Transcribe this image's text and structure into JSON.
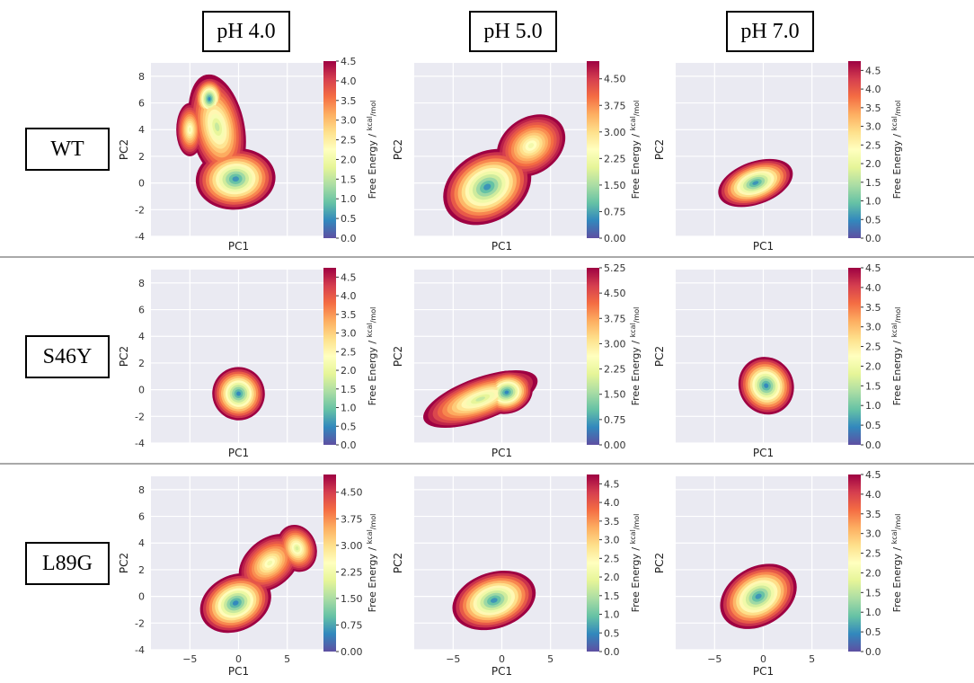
{
  "columns": [
    "pH 4.0",
    "pH 5.0",
    "pH 7.0"
  ],
  "rows": [
    "WT",
    "S46Y",
    "L89G"
  ],
  "colors": {
    "panel_bg": "#eaeaf2",
    "grid": "#ffffff",
    "separator": "#a9a9a9",
    "spectral_low_to_high": [
      "#5e4fa2",
      "#3288bd",
      "#66c2a5",
      "#abdda4",
      "#e6f598",
      "#ffffbf",
      "#fee08b",
      "#fdae61",
      "#f46d43",
      "#d53e4f",
      "#9e0142"
    ]
  },
  "chart_data": [
    {
      "type": "heatmap",
      "id": "wt-ph4",
      "row": "WT",
      "column": "pH 4.0",
      "xlabel": "PC1",
      "ylabel": "PC2",
      "show_x_ticks": false,
      "show_y_ticks": true,
      "xlim": [
        -9,
        9
      ],
      "ylim": [
        -4,
        9
      ],
      "x_ticks": [
        "-5",
        "0",
        "5"
      ],
      "y_ticks": [
        "-4",
        "-2",
        "0",
        "2",
        "4",
        "6",
        "8"
      ],
      "colorbar": {
        "label": "Free Energy / kcal/mol",
        "label_prefix": "Free Energy / ",
        "unit_num": "kcal",
        "unit_den": "mol",
        "min": 0,
        "max": 4.5,
        "ticks": [
          "0.0",
          "0.5",
          "1.0",
          "1.5",
          "2.0",
          "2.5",
          "3.0",
          "3.5",
          "4.0",
          "4.5"
        ]
      },
      "basins": [
        {
          "x": -2.2,
          "y": 4.2,
          "rx": 2.8,
          "ry": 4.0,
          "rot": 12,
          "min": 1.3
        },
        {
          "x": -3.0,
          "y": 6.3,
          "rx": 1.6,
          "ry": 1.6,
          "rot": 0,
          "min": 0.1
        },
        {
          "x": -0.3,
          "y": 0.3,
          "rx": 4.1,
          "ry": 2.3,
          "rot": 5,
          "min": 0.2
        },
        {
          "x": -5.0,
          "y": 4.0,
          "rx": 1.4,
          "ry": 2.0,
          "rot": 0,
          "min": 1.8
        }
      ]
    },
    {
      "type": "heatmap",
      "id": "wt-ph5",
      "row": "WT",
      "column": "pH 5.0",
      "xlabel": "PC1",
      "ylabel": "PC2",
      "show_x_ticks": false,
      "show_y_ticks": false,
      "xlim": [
        -9,
        9
      ],
      "ylim": [
        -4,
        9
      ],
      "x_ticks": [
        "-5",
        "0",
        "5"
      ],
      "y_ticks": [
        "-4",
        "-2",
        "0",
        "2",
        "4",
        "6",
        "8"
      ],
      "colorbar": {
        "label": "Free Energy / kcal/mol",
        "label_prefix": "Free Energy / ",
        "unit_num": "kcal",
        "unit_den": "mol",
        "min": 0,
        "max": 5.0,
        "ticks": [
          "0.00",
          "0.75",
          "1.50",
          "2.25",
          "3.00",
          "3.75",
          "4.50"
        ]
      },
      "basins": [
        {
          "x": -1.5,
          "y": -0.3,
          "rx": 4.8,
          "ry": 2.6,
          "rot": 30,
          "min": 0.2
        },
        {
          "x": 3.0,
          "y": 2.8,
          "rx": 3.8,
          "ry": 2.1,
          "rot": 35,
          "min": 2.0
        }
      ]
    },
    {
      "type": "heatmap",
      "id": "wt-ph7",
      "row": "WT",
      "column": "pH 7.0",
      "xlabel": "PC1",
      "ylabel": "PC2",
      "show_x_ticks": false,
      "show_y_ticks": false,
      "xlim": [
        -9,
        9
      ],
      "ylim": [
        -4,
        9
      ],
      "x_ticks": [
        "-5",
        "0",
        "5"
      ],
      "y_ticks": [
        "-4",
        "-2",
        "0",
        "2",
        "4",
        "6",
        "8"
      ],
      "colorbar": {
        "label": "Free Energy / kcal/mol",
        "label_prefix": "Free Energy / ",
        "unit_num": "kcal",
        "unit_den": "mol",
        "min": 0,
        "max": 4.75,
        "ticks": [
          "0.0",
          "0.5",
          "1.0",
          "1.5",
          "2.0",
          "2.5",
          "3.0",
          "3.5",
          "4.0",
          "4.5"
        ]
      },
      "basins": [
        {
          "x": -0.8,
          "y": 0.0,
          "rx": 4.0,
          "ry": 1.6,
          "rot": 20,
          "min": 0.2
        }
      ]
    },
    {
      "type": "heatmap",
      "id": "s46y-ph4",
      "row": "S46Y",
      "column": "pH 4.0",
      "xlabel": "PC1",
      "ylabel": "PC2",
      "show_x_ticks": false,
      "show_y_ticks": true,
      "xlim": [
        -9,
        9
      ],
      "ylim": [
        -4,
        9
      ],
      "x_ticks": [
        "-5",
        "0",
        "5"
      ],
      "y_ticks": [
        "-4",
        "-2",
        "0",
        "2",
        "4",
        "6",
        "8"
      ],
      "colorbar": {
        "label": "Free Energy / kcal/mol",
        "label_prefix": "Free Energy / ",
        "unit_num": "kcal",
        "unit_den": "mol",
        "min": 0,
        "max": 4.75,
        "ticks": [
          "0.0",
          "0.5",
          "1.0",
          "1.5",
          "2.0",
          "2.5",
          "3.0",
          "3.5",
          "4.0",
          "4.5"
        ]
      },
      "basins": [
        {
          "x": 0.0,
          "y": -0.3,
          "rx": 2.7,
          "ry": 2.0,
          "rot": 15,
          "min": 0.1
        }
      ]
    },
    {
      "type": "heatmap",
      "id": "s46y-ph5",
      "row": "S46Y",
      "column": "pH 5.0",
      "xlabel": "PC1",
      "ylabel": "PC2",
      "show_x_ticks": false,
      "show_y_ticks": false,
      "xlim": [
        -9,
        9
      ],
      "ylim": [
        -4,
        9
      ],
      "x_ticks": [
        "-5",
        "0",
        "5"
      ],
      "y_ticks": [
        "-4",
        "-2",
        "0",
        "2",
        "4",
        "6",
        "8"
      ],
      "colorbar": {
        "label": "Free Energy / kcal/mol",
        "label_prefix": "Free Energy / ",
        "unit_num": "kcal",
        "unit_den": "mol",
        "min": 0,
        "max": 5.25,
        "ticks": [
          "0.00",
          "0.75",
          "1.50",
          "2.25",
          "3.00",
          "3.75",
          "4.50",
          "5.25"
        ]
      },
      "basins": [
        {
          "x": -2.2,
          "y": -0.7,
          "rx": 6.2,
          "ry": 1.6,
          "rot": 20,
          "min": 1.5
        },
        {
          "x": 0.5,
          "y": -0.2,
          "rx": 2.7,
          "ry": 1.6,
          "rot": 15,
          "min": 0.1
        }
      ]
    },
    {
      "type": "heatmap",
      "id": "s46y-ph7",
      "row": "S46Y",
      "column": "pH 7.0",
      "xlabel": "PC1",
      "ylabel": "PC2",
      "show_x_ticks": false,
      "show_y_ticks": false,
      "xlim": [
        -9,
        9
      ],
      "ylim": [
        -4,
        9
      ],
      "x_ticks": [
        "-5",
        "0",
        "5"
      ],
      "y_ticks": [
        "-4",
        "-2",
        "0",
        "2",
        "4",
        "6",
        "8"
      ],
      "colorbar": {
        "label": "Free Energy / kcal/mol",
        "label_prefix": "Free Energy / ",
        "unit_num": "kcal",
        "unit_den": "mol",
        "min": 0,
        "max": 4.5,
        "ticks": [
          "0.0",
          "0.5",
          "1.0",
          "1.5",
          "2.0",
          "2.5",
          "3.0",
          "3.5",
          "4.0",
          "4.5"
        ]
      },
      "basins": [
        {
          "x": 0.3,
          "y": 0.3,
          "rx": 2.8,
          "ry": 2.2,
          "rot": 30,
          "min": 0.1
        }
      ]
    },
    {
      "type": "heatmap",
      "id": "l89g-ph4",
      "row": "L89G",
      "column": "pH 4.0",
      "xlabel": "PC1",
      "ylabel": "PC2",
      "show_x_ticks": true,
      "show_y_ticks": true,
      "xlim": [
        -9,
        9
      ],
      "ylim": [
        -4,
        9
      ],
      "x_ticks": [
        "-5",
        "0",
        "5"
      ],
      "y_ticks": [
        "-4",
        "-2",
        "0",
        "2",
        "4",
        "6",
        "8"
      ],
      "colorbar": {
        "label": "Free Energy / kcal/mol",
        "label_prefix": "Free Energy / ",
        "unit_num": "kcal",
        "unit_den": "mol",
        "min": 0,
        "max": 5.0,
        "ticks": [
          "0.00",
          "0.75",
          "1.50",
          "2.25",
          "3.00",
          "3.75",
          "4.50"
        ]
      },
      "basins": [
        {
          "x": -0.3,
          "y": -0.5,
          "rx": 3.8,
          "ry": 2.1,
          "rot": 25,
          "min": 0.1
        },
        {
          "x": 3.2,
          "y": 2.5,
          "rx": 3.6,
          "ry": 1.8,
          "rot": 40,
          "min": 2.0
        },
        {
          "x": 6.0,
          "y": 3.6,
          "rx": 2.0,
          "ry": 1.8,
          "rot": 20,
          "min": 1.6
        }
      ]
    },
    {
      "type": "heatmap",
      "id": "l89g-ph5",
      "row": "L89G",
      "column": "pH 5.0",
      "xlabel": "PC1",
      "ylabel": "PC2",
      "show_x_ticks": true,
      "show_y_ticks": false,
      "xlim": [
        -9,
        9
      ],
      "ylim": [
        -4,
        9
      ],
      "x_ticks": [
        "-5",
        "0",
        "5"
      ],
      "y_ticks": [
        "-4",
        "-2",
        "0",
        "2",
        "4",
        "6",
        "8"
      ],
      "colorbar": {
        "label": "Free Energy / kcal/mol",
        "label_prefix": "Free Energy / ",
        "unit_num": "kcal",
        "unit_den": "mol",
        "min": 0,
        "max": 4.75,
        "ticks": [
          "0.0",
          "0.5",
          "1.0",
          "1.5",
          "2.0",
          "2.5",
          "3.0",
          "3.5",
          "4.0",
          "4.5"
        ]
      },
      "basins": [
        {
          "x": -0.8,
          "y": -0.3,
          "rx": 4.4,
          "ry": 2.1,
          "rot": 18,
          "min": 0.2
        }
      ]
    },
    {
      "type": "heatmap",
      "id": "l89g-ph7",
      "row": "L89G",
      "column": "pH 7.0",
      "xlabel": "PC1",
      "ylabel": "PC2",
      "show_x_ticks": true,
      "show_y_ticks": false,
      "xlim": [
        -9,
        9
      ],
      "ylim": [
        -4,
        9
      ],
      "x_ticks": [
        "-5",
        "0",
        "5"
      ],
      "y_ticks": [
        "-4",
        "-2",
        "0",
        "2",
        "4",
        "6",
        "8"
      ],
      "colorbar": {
        "label": "Free Energy / kcal/mol",
        "label_prefix": "Free Energy / ",
        "unit_num": "kcal",
        "unit_den": "mol",
        "min": 0,
        "max": 4.5,
        "ticks": [
          "0.0",
          "0.5",
          "1.0",
          "1.5",
          "2.0",
          "2.5",
          "3.0",
          "3.5",
          "4.0",
          "4.5"
        ]
      },
      "basins": [
        {
          "x": -0.5,
          "y": 0.0,
          "rx": 4.2,
          "ry": 2.2,
          "rot": 30,
          "min": 0.2
        }
      ]
    }
  ]
}
